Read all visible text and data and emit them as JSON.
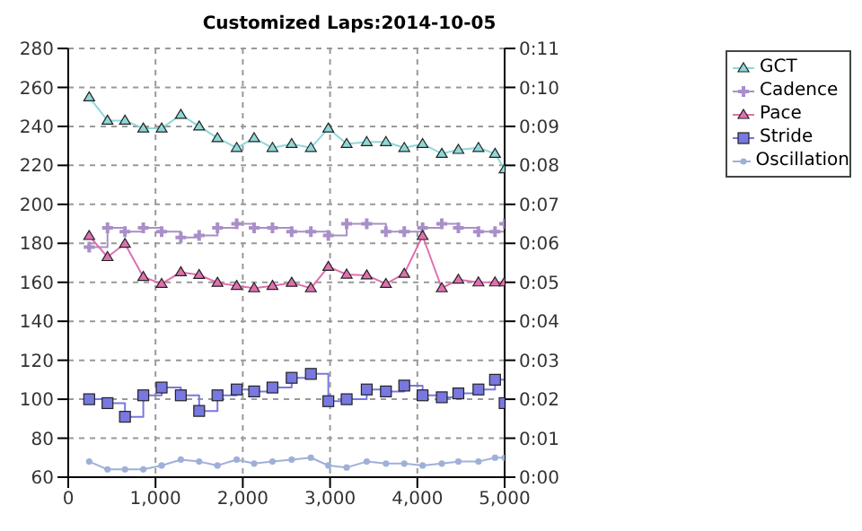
{
  "chart_data": {
    "type": "line",
    "title": "Customized Laps:2014-10-05",
    "x": [
      240,
      450,
      650,
      860,
      1070,
      1290,
      1500,
      1710,
      1930,
      2130,
      2340,
      2560,
      2780,
      2980,
      3190,
      3420,
      3640,
      3850,
      4060,
      4280,
      4470,
      4700,
      4890,
      5000
    ],
    "series": [
      {
        "name": "GCT",
        "color": "#8fd8d8",
        "marker": "triangle",
        "values": [
          255,
          243,
          243,
          239,
          239,
          246,
          240,
          234,
          229,
          234,
          229,
          231,
          229,
          239,
          231,
          232,
          232,
          229,
          231,
          226,
          228,
          229,
          226,
          218
        ]
      },
      {
        "name": "Cadence",
        "type": "step",
        "color": "#a98fc8",
        "marker": "cross",
        "values": [
          178,
          188,
          186,
          188,
          186,
          183,
          184,
          188,
          190,
          188,
          188,
          186,
          186,
          184,
          190,
          190,
          186,
          186,
          188,
          190,
          188,
          186,
          186,
          190
        ]
      },
      {
        "name": "Pace",
        "axis": "y2",
        "color": "#e070b0",
        "marker": "triangle",
        "values": [
          6.19,
          5.65,
          5.99,
          5.14,
          4.96,
          5.26,
          5.19,
          4.99,
          4.91,
          4.85,
          4.91,
          4.99,
          4.85,
          5.4,
          5.2,
          5.18,
          4.96,
          5.22,
          6.19,
          4.85,
          5.07,
          5.0,
          5.0,
          5.0
        ]
      },
      {
        "name": "Stride",
        "type": "step",
        "color": "#7878e0",
        "marker": "square",
        "values": [
          100,
          98,
          91,
          102,
          106,
          102,
          94,
          102,
          105,
          104,
          106,
          111,
          113,
          99,
          100,
          105,
          104,
          107,
          102,
          101,
          103,
          105,
          110,
          98
        ]
      },
      {
        "name": "Oscillation",
        "color": "#9fb0d8",
        "marker": "circle",
        "values": [
          68,
          64,
          64,
          64,
          66,
          69,
          68,
          66,
          69,
          67,
          68,
          69,
          70,
          66,
          65,
          68,
          67,
          67,
          66,
          67,
          68,
          68,
          70,
          70
        ]
      }
    ],
    "xlim": [
      0,
      5000
    ],
    "xticks": [
      0,
      {
        "value": 1000,
        "label": "1,000"
      },
      {
        "value": 2000,
        "label": "2,000"
      },
      {
        "value": 3000,
        "label": "3,000"
      },
      {
        "value": 4000,
        "label": "4,000"
      },
      {
        "value": 5000,
        "label": "5,000"
      }
    ],
    "ylim": [
      60,
      280
    ],
    "yticks": [
      60,
      80,
      100,
      120,
      140,
      160,
      180,
      200,
      220,
      240,
      260,
      280
    ],
    "y2lim": [
      0,
      11
    ],
    "y2ticks": [
      {
        "value": 0,
        "label": "0:00"
      },
      {
        "value": 1,
        "label": "0:01"
      },
      {
        "value": 2,
        "label": "0:02"
      },
      {
        "value": 3,
        "label": "0:03"
      },
      {
        "value": 4,
        "label": "0:04"
      },
      {
        "value": 5,
        "label": "0:05"
      },
      {
        "value": 6,
        "label": "0:06"
      },
      {
        "value": 7,
        "label": "0:07"
      },
      {
        "value": 8,
        "label": "0:08"
      },
      {
        "value": 9,
        "label": "0:09"
      },
      {
        "value": 10,
        "label": "0:10"
      },
      {
        "value": 11,
        "label": "0:11"
      }
    ],
    "grid": true,
    "legend": "right"
  }
}
